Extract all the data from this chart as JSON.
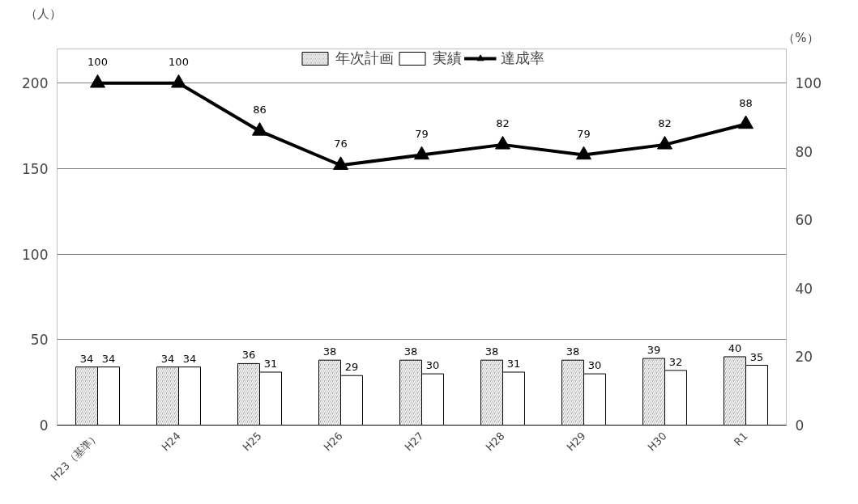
{
  "chart_data": {
    "type": "bar",
    "ylabel": "（人）",
    "y2label": "（%）",
    "categories": [
      "H23（基準）",
      "H24",
      "H25",
      "H26",
      "H27",
      "H28",
      "H29",
      "H30",
      "R1"
    ],
    "series": [
      {
        "name": "年次計画",
        "color": "#a6a6a6",
        "values": [
          34,
          34,
          36,
          38,
          38,
          38,
          38,
          39,
          40
        ]
      },
      {
        "name": "実績",
        "color": "#ffffff",
        "values": [
          34,
          34,
          31,
          29,
          30,
          31,
          30,
          32,
          35
        ]
      },
      {
        "name": "達成率",
        "type": "line",
        "axis": "y2",
        "color": "#000000",
        "marker": "triangle",
        "values": [
          100,
          100,
          86,
          76,
          79,
          82,
          79,
          82,
          88
        ]
      }
    ],
    "ylim": [
      0,
      220
    ],
    "yticks": [
      0,
      50,
      100,
      150,
      200
    ],
    "y2lim": [
      0,
      110
    ],
    "y2ticks": [
      0,
      20,
      40,
      60,
      80,
      100
    ],
    "grid": "y",
    "legend": "top",
    "data_labels": true,
    "line_style": "solid"
  }
}
